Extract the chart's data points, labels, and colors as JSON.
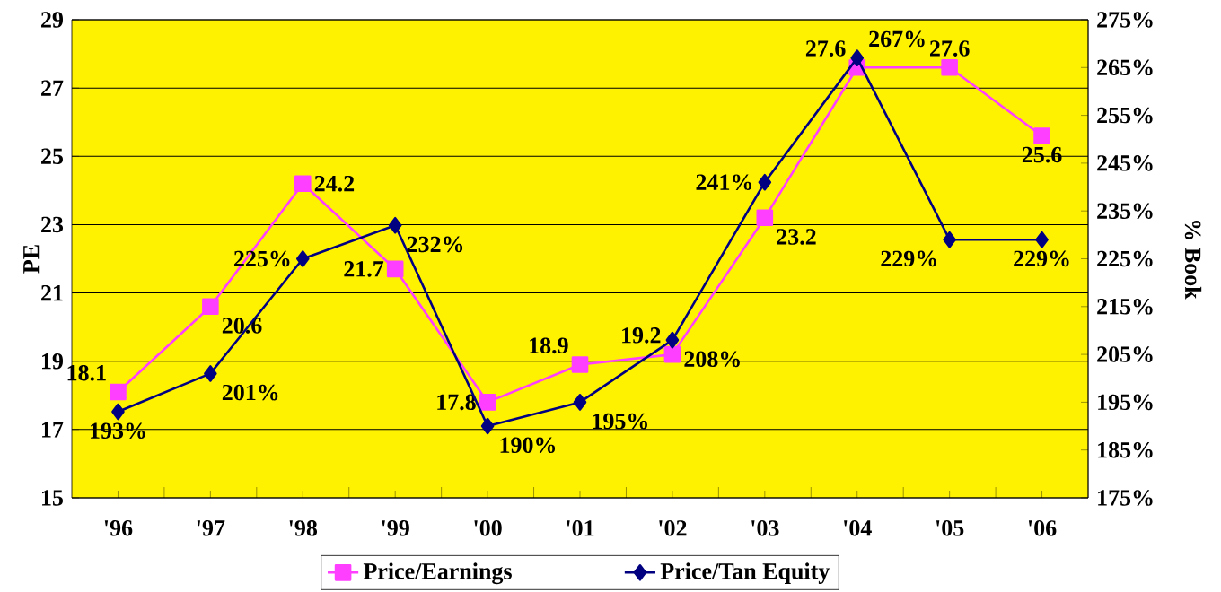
{
  "chart_data": {
    "type": "line",
    "ylabel": "PE",
    "y2label": "% Book",
    "categories": [
      "'96",
      "'97",
      "'98",
      "'99",
      "'00",
      "'01",
      "'02",
      "'03",
      "'04",
      "'05",
      "'06"
    ],
    "series": [
      {
        "name": "Price/Earnings",
        "color": "#ff3fff",
        "marker": "square",
        "values": [
          18.1,
          20.6,
          24.2,
          21.7,
          17.8,
          18.9,
          19.2,
          23.2,
          27.6,
          27.6,
          25.6
        ],
        "value_labels": [
          "18.1",
          "20.6",
          "24.2",
          "21.7",
          "17.8",
          "18.9",
          "19.2",
          "23.2",
          "27.6",
          "27.6",
          "25.6"
        ]
      },
      {
        "name": "Price/Tan Equity",
        "color": "#000080",
        "marker": "diamond",
        "axis": "y2",
        "values": [
          193,
          201,
          225,
          232,
          190,
          195,
          208,
          241,
          267,
          229,
          229
        ],
        "value_labels": [
          "193%",
          "201%",
          "225%",
          "232%",
          "190%",
          "195%",
          "208%",
          "241%",
          "267%",
          "229%",
          "229%"
        ]
      }
    ],
    "ylim": [
      15,
      29
    ],
    "yticks": [
      15,
      17,
      19,
      21,
      23,
      25,
      27,
      29
    ],
    "y2lim": [
      175,
      275
    ],
    "y2ticks": [
      {
        "value": 175,
        "label": "175%"
      },
      {
        "value": 185,
        "label": "185%"
      },
      {
        "value": 195,
        "label": "195%"
      },
      {
        "value": 205,
        "label": "205%"
      },
      {
        "value": 215,
        "label": "215%"
      },
      {
        "value": 225,
        "label": "225%"
      },
      {
        "value": 235,
        "label": "235%"
      },
      {
        "value": 245,
        "label": "245%"
      },
      {
        "value": 255,
        "label": "255%"
      },
      {
        "value": 265,
        "label": "265%"
      },
      {
        "value": 275,
        "label": "275%"
      }
    ],
    "grid": "y",
    "legend": "bottom"
  }
}
